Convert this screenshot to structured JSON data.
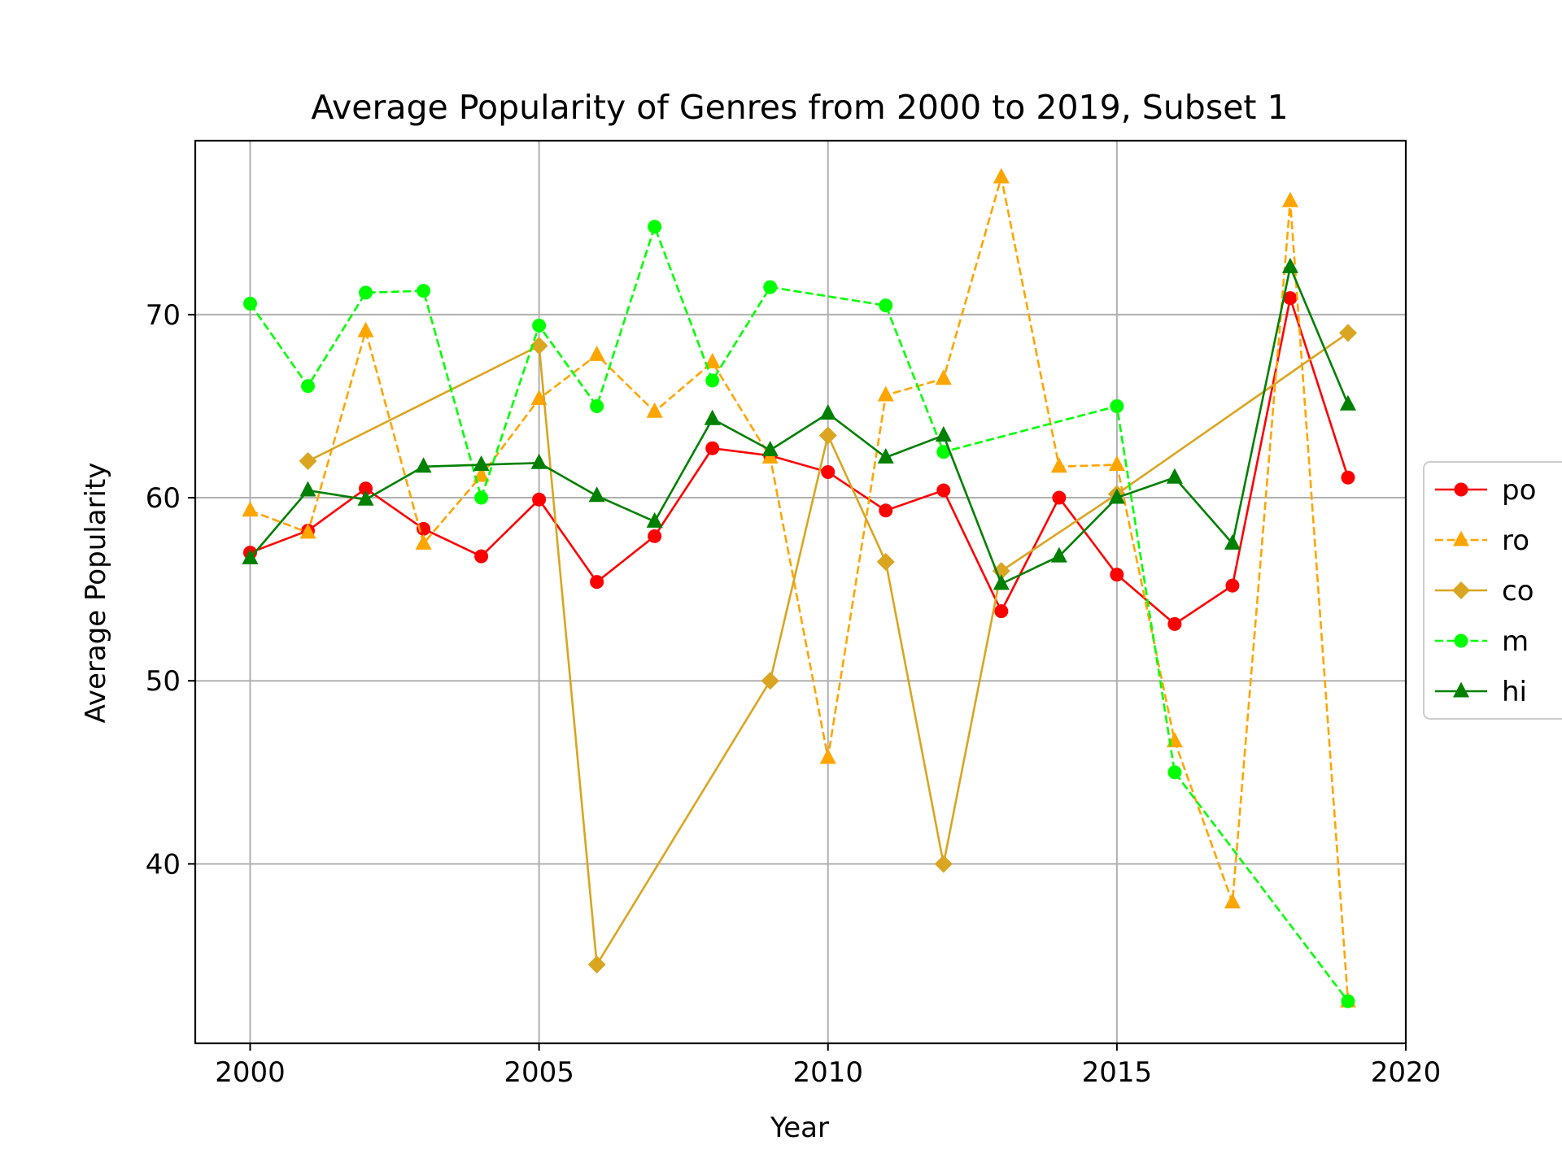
{
  "chart_data": {
    "type": "line",
    "title": "Average Popularity of Genres from 2000 to 2019, Subset 1",
    "xlabel": "Year",
    "ylabel": "Average Popularity",
    "xlim": [
      1999.05,
      2020
    ],
    "ylim": [
      30.2,
      79.5
    ],
    "xticks": [
      2000,
      2005,
      2010,
      2015,
      2020
    ],
    "yticks": [
      40,
      50,
      60,
      70
    ],
    "grid": true,
    "legend_position": "right",
    "series": [
      {
        "name": "po",
        "color": "#ff0000",
        "linestyle": "solid",
        "marker": "circle",
        "points": [
          [
            2000,
            57.0
          ],
          [
            2001,
            58.2
          ],
          [
            2002,
            60.5
          ],
          [
            2003,
            58.3
          ],
          [
            2004,
            56.8
          ],
          [
            2005,
            59.9
          ],
          [
            2006,
            55.4
          ],
          [
            2007,
            57.9
          ],
          [
            2008,
            62.7
          ],
          [
            2009,
            62.3
          ],
          [
            2010,
            61.4
          ],
          [
            2011,
            59.3
          ],
          [
            2012,
            60.4
          ],
          [
            2013,
            53.8
          ],
          [
            2014,
            60.0
          ],
          [
            2015,
            55.8
          ],
          [
            2016,
            53.1
          ],
          [
            2017,
            55.2
          ],
          [
            2018,
            70.9
          ],
          [
            2019,
            61.1
          ]
        ]
      },
      {
        "name": "ro",
        "color": "#ffa500",
        "linestyle": "dashed",
        "marker": "triangle",
        "points": [
          [
            2000,
            59.3
          ],
          [
            2001,
            58.1
          ],
          [
            2002,
            69.1
          ],
          [
            2003,
            57.5
          ],
          [
            2004,
            61.2
          ],
          [
            2005,
            65.4
          ],
          [
            2006,
            67.8
          ],
          [
            2007,
            64.7
          ],
          [
            2008,
            67.4
          ],
          [
            2009,
            62.2
          ],
          [
            2010,
            45.8
          ],
          [
            2011,
            65.6
          ],
          [
            2012,
            66.5
          ],
          [
            2013,
            77.5
          ],
          [
            2014,
            61.7
          ],
          [
            2015,
            61.8
          ],
          [
            2016,
            46.7
          ],
          [
            2017,
            37.9
          ],
          [
            2018,
            76.2
          ],
          [
            2019,
            32.5
          ]
        ]
      },
      {
        "name": "co",
        "color": "#daa520",
        "linestyle": "solid",
        "marker": "diamond",
        "points": [
          [
            2001,
            62.0
          ],
          [
            2005,
            68.3
          ],
          [
            2006,
            34.5
          ],
          [
            2009,
            50.0
          ],
          [
            2010,
            63.4
          ],
          [
            2011,
            56.5
          ],
          [
            2012,
            40.0
          ],
          [
            2013,
            56.0
          ],
          [
            2015,
            60.2
          ],
          [
            2019,
            69.0
          ]
        ]
      },
      {
        "name": "m",
        "color": "#00ff00",
        "linestyle": "dashed",
        "marker": "circle",
        "points": [
          [
            2000,
            70.6
          ],
          [
            2001,
            66.1
          ],
          [
            2002,
            71.2
          ],
          [
            2003,
            71.3
          ],
          [
            2004,
            60.0
          ],
          [
            2005,
            69.4
          ],
          [
            2006,
            65.0
          ],
          [
            2007,
            74.8
          ],
          [
            2008,
            66.4
          ],
          [
            2009,
            71.5
          ],
          [
            2011,
            70.5
          ],
          [
            2012,
            62.5
          ],
          [
            2015,
            65.0
          ],
          [
            2016,
            45.0
          ],
          [
            2019,
            32.5
          ]
        ]
      },
      {
        "name": "hi",
        "color": "#008000",
        "linestyle": "solid",
        "marker": "triangle",
        "points": [
          [
            2000,
            56.7
          ],
          [
            2001,
            60.4
          ],
          [
            2002,
            59.9
          ],
          [
            2003,
            61.7
          ],
          [
            2004,
            61.8
          ],
          [
            2005,
            61.9
          ],
          [
            2006,
            60.1
          ],
          [
            2007,
            58.7
          ],
          [
            2008,
            64.3
          ],
          [
            2009,
            62.6
          ],
          [
            2010,
            64.6
          ],
          [
            2011,
            62.2
          ],
          [
            2012,
            63.4
          ],
          [
            2013,
            55.3
          ],
          [
            2014,
            56.8
          ],
          [
            2015,
            60.0
          ],
          [
            2016,
            61.1
          ],
          [
            2017,
            57.5
          ],
          [
            2018,
            72.6
          ],
          [
            2019,
            65.1
          ]
        ]
      }
    ]
  }
}
